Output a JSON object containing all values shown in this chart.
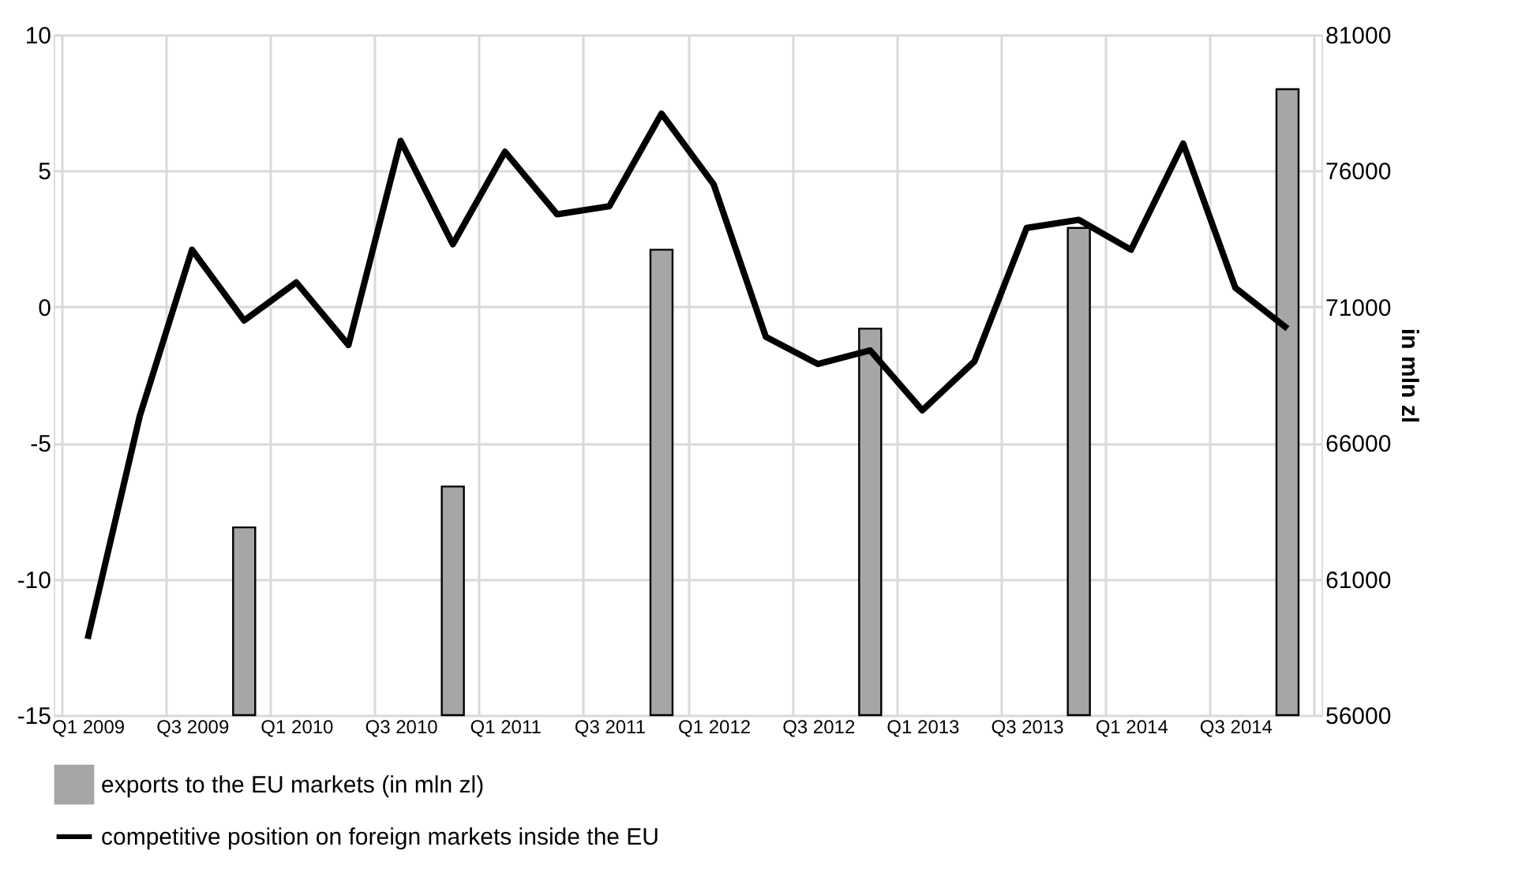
{
  "chart_data": {
    "type": "bar",
    "categories": [
      "Q1 2009",
      null,
      "Q3 2009",
      null,
      "Q1 2010",
      null,
      "Q3 2010",
      null,
      "Q1 2011",
      null,
      "Q3 2011",
      null,
      "Q1 2012",
      null,
      "Q3 2012",
      null,
      "Q1 2013",
      null,
      "Q3 2013",
      null,
      "Q1 2014",
      null,
      "Q3 2014",
      null
    ],
    "series": [
      {
        "name": "exports to the EU markets (in mln zl)",
        "axis": "y2",
        "color": "#a6a6a6",
        "values": [
          null,
          null,
          null,
          62900,
          null,
          null,
          null,
          64400,
          null,
          null,
          null,
          73100,
          null,
          null,
          null,
          70200,
          null,
          null,
          null,
          73900,
          null,
          null,
          null,
          79000
        ]
      },
      {
        "name": "competitive position on foreign markets inside the EU",
        "type": "line",
        "color": "#000000",
        "values": [
          -12.2,
          -4.0,
          2.1,
          -0.5,
          0.9,
          -1.4,
          6.1,
          2.3,
          5.7,
          3.4,
          3.7,
          7.1,
          4.5,
          -1.1,
          -2.1,
          -1.6,
          -3.8,
          -2.0,
          2.9,
          3.2,
          2.1,
          6.0,
          0.7,
          -0.8
        ]
      }
    ],
    "ylim": [
      -15,
      10
    ],
    "yticks": [
      -15,
      -10,
      -5,
      0,
      5,
      10
    ],
    "y2lim": [
      56000,
      81000
    ],
    "y2ticks": [
      56000,
      61000,
      66000,
      71000,
      76000,
      81000
    ],
    "y2label": "in mln zl",
    "grid": true,
    "legend": "bottom"
  }
}
